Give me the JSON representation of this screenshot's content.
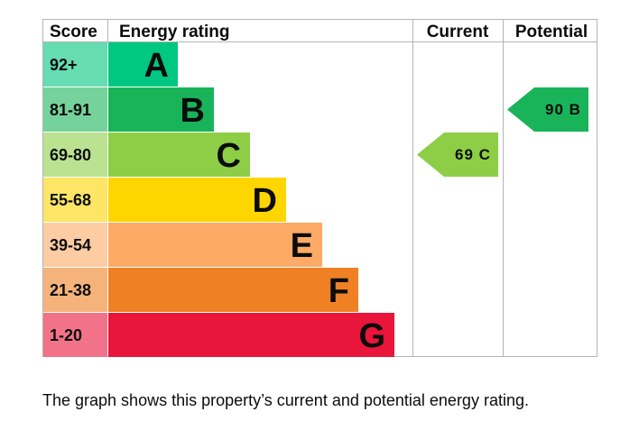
{
  "headers": {
    "score": "Score",
    "energy_rating": "Energy rating",
    "current": "Current",
    "potential": "Potential"
  },
  "chart_data": {
    "type": "bar",
    "categories": [
      "A",
      "B",
      "C",
      "D",
      "E",
      "F",
      "G"
    ],
    "score_ranges": [
      "92+",
      "81-91",
      "69-80",
      "55-68",
      "39-54",
      "21-38",
      "1-20"
    ],
    "values": [
      1,
      2,
      3,
      4,
      5,
      6,
      7
    ],
    "colors": [
      "#00c781",
      "#19b459",
      "#8dce46",
      "#ffd500",
      "#fcaa65",
      "#ef8023",
      "#e9153b"
    ],
    "score_colors": [
      "#66dcb3",
      "#75d29b",
      "#bbe290",
      "#ffe566",
      "#fdcca3",
      "#f5b37b",
      "#f27389"
    ],
    "current": {
      "value": 69,
      "band": "C",
      "label": "69 C",
      "color": "#8dce46"
    },
    "potential": {
      "value": 90,
      "band": "B",
      "label": "90 B",
      "color": "#19b459"
    }
  },
  "caption": "The graph shows this property’s current and potential energy rating."
}
